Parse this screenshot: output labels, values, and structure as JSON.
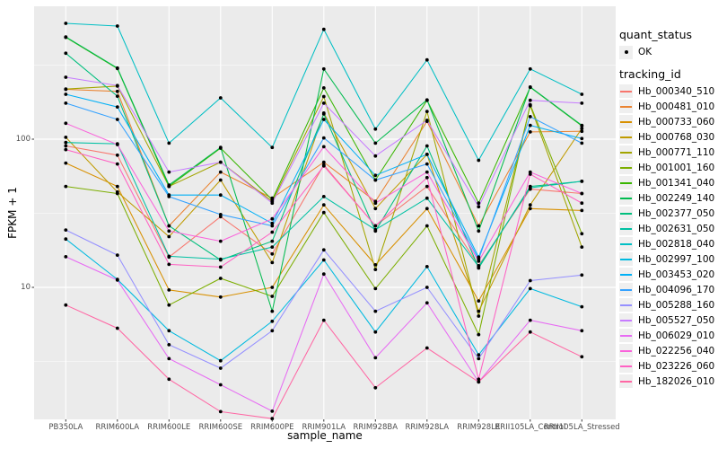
{
  "axes": {
    "y_title": "FPKM + 1",
    "x_title": "sample_name",
    "y_tick_values": [
      100,
      10
    ],
    "y_tick_labels": [
      "100",
      "10"
    ]
  },
  "legend": {
    "quant_title": "quant_status",
    "quant_items": [
      {
        "label": "OK",
        "marker": "black-point"
      }
    ],
    "tracking_title": "tracking_id"
  },
  "style": {
    "panel_bg": "#EBEBEB",
    "grid_major": "#FFFFFF",
    "grid_minor": "#FFFFFF",
    "tick_text": "#4D4D4D",
    "point_color": "#000000",
    "legend_key_bg": "#EFEFEF"
  },
  "chart_data": {
    "type": "line",
    "title": "",
    "xlabel": "sample_name",
    "ylabel": "FPKM + 1",
    "y_scale": "log10",
    "ylim": [
      1.3,
      790
    ],
    "grid": "on",
    "legend_position": "right",
    "point_marker": "black dot at every observation (quant_status = OK)",
    "x_categories": [
      "PB350LA",
      "RRIM600LA",
      "RRIM600LE",
      "RRIM600SE",
      "RRIM600PE",
      "RRIM901LA",
      "RRIM928BA",
      "RRIM928LA",
      "RRIM928LE",
      "RRII105LA_Control",
      "RRII105LA_Stressed"
    ],
    "series": [
      {
        "name": "Hb_000340_510",
        "color": "#F8766D",
        "values": [
          90,
          78,
          16,
          30,
          16.8,
          67,
          26,
          48,
          14,
          46,
          43
        ]
      },
      {
        "name": "Hb_000481_010",
        "color": "#EA8331",
        "values": [
          217,
          210,
          26,
          60,
          40,
          70,
          38,
          132,
          26,
          112,
          113
        ]
      },
      {
        "name": "Hb_000733_060",
        "color": "#D89000",
        "values": [
          69,
          48,
          9.6,
          8.6,
          10,
          36,
          14.2,
          34,
          8.1,
          34,
          33
        ]
      },
      {
        "name": "Hb_000768_030",
        "color": "#C09B00",
        "values": [
          103,
          44,
          22,
          53,
          14.7,
          150,
          34,
          79,
          6.9,
          36,
          118
        ]
      },
      {
        "name": "Hb_000771_110",
        "color": "#A3A500",
        "values": [
          218,
          228,
          48,
          70,
          38,
          194,
          13.2,
          154,
          6.4,
          168,
          18.7
        ]
      },
      {
        "name": "Hb_001001_160",
        "color": "#7CAE00",
        "values": [
          48,
          43,
          7.6,
          11.5,
          8.7,
          32,
          9.8,
          26,
          4.8,
          171,
          23
        ]
      },
      {
        "name": "Hb_001341_040",
        "color": "#39B600",
        "values": [
          487,
          300,
          48,
          87,
          39,
          222,
          53,
          183,
          37,
          224,
          123
        ]
      },
      {
        "name": "Hb_002249_140",
        "color": "#00BB4E",
        "values": [
          490,
          302,
          49,
          88,
          6.9,
          298,
          94,
          184,
          24,
          225,
          124
        ]
      },
      {
        "name": "Hb_002377_050",
        "color": "#00BF7D",
        "values": [
          380,
          195,
          26,
          15.3,
          20.5,
          148,
          24,
          90,
          13.5,
          48,
          52
        ]
      },
      {
        "name": "Hb_002631_050",
        "color": "#00C1A3",
        "values": [
          95,
          93,
          16.2,
          15.5,
          18.7,
          41,
          24.5,
          40,
          13.8,
          47,
          52
        ]
      },
      {
        "name": "Hb_002818_040",
        "color": "#00BFC4",
        "values": [
          605,
          580,
          94,
          190,
          88,
          551,
          117,
          343,
          72,
          298,
          201
        ]
      },
      {
        "name": "Hb_002997_100",
        "color": "#00BAE0",
        "values": [
          21.2,
          11.3,
          5.1,
          3.2,
          5.9,
          15.3,
          5.0,
          13.8,
          3.5,
          9.8,
          7.4
        ]
      },
      {
        "name": "Hb_003453_020",
        "color": "#00B0F6",
        "values": [
          201,
          165,
          42,
          42,
          27,
          136,
          57,
          79,
          16,
          124,
          101
        ]
      },
      {
        "name": "Hb_004096_170",
        "color": "#35A2FF",
        "values": [
          175,
          136,
          41,
          31,
          26,
          102,
          53,
          68,
          15.5,
          142,
          94
        ]
      },
      {
        "name": "Hb_005288_160",
        "color": "#9590FF",
        "values": [
          24.4,
          16.5,
          4.1,
          2.85,
          5.1,
          17.9,
          6.9,
          10,
          3.3,
          11.1,
          12.1
        ]
      },
      {
        "name": "Hb_005527_050",
        "color": "#C77CFF",
        "values": [
          262,
          230,
          60,
          70,
          37,
          175,
          77,
          134,
          35,
          183,
          175
        ]
      },
      {
        "name": "Hb_006029_010",
        "color": "#E76BF3",
        "values": [
          16.1,
          11.2,
          3.3,
          2.2,
          1.46,
          12.3,
          3.35,
          7.85,
          2.3,
          6.0,
          5.1
        ]
      },
      {
        "name": "Hb_022256_040",
        "color": "#FA62DB",
        "values": [
          128,
          92,
          24,
          20.5,
          29,
          89,
          37,
          60,
          15,
          60,
          43
        ]
      },
      {
        "name": "Hb_023226_060",
        "color": "#FF61C3",
        "values": [
          85,
          68,
          14.3,
          13.7,
          23.6,
          66,
          26,
          55,
          2.4,
          58,
          37
        ]
      },
      {
        "name": "Hb_182026_010",
        "color": "#FF67A4",
        "values": [
          7.6,
          5.3,
          2.4,
          1.45,
          1.3,
          6.0,
          2.1,
          3.9,
          2.3,
          5.0,
          3.4
        ]
      }
    ]
  }
}
